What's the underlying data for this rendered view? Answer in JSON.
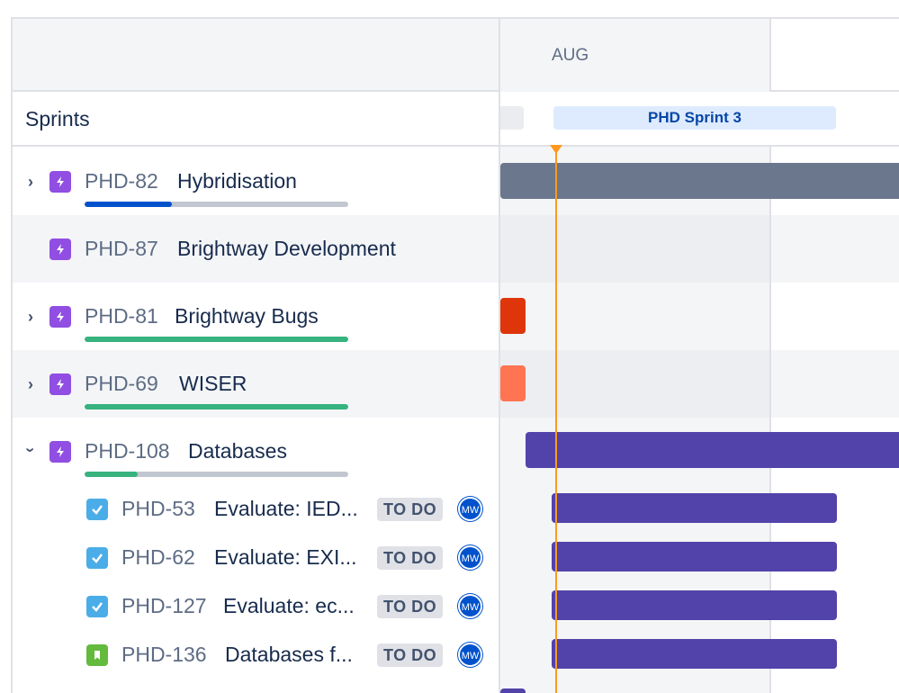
{
  "header": {
    "month": "AUG"
  },
  "sprints": {
    "label": "Sprints",
    "current_sprint": "PHD Sprint 3"
  },
  "epics": [
    {
      "key": "PHD-82",
      "title": "Hybridisation",
      "expandable": true,
      "expanded": false,
      "progress": 0.33,
      "progress_color": "#0052cc",
      "bar_color": "#6b778c"
    },
    {
      "key": "PHD-87",
      "title": "Brightway Development",
      "expandable": false,
      "expanded": false,
      "progress": null,
      "progress_color": "",
      "bar_color": ""
    },
    {
      "key": "PHD-81",
      "title": "Brightway Bugs",
      "expandable": true,
      "expanded": false,
      "progress": 1.0,
      "progress_color": "#36b37e",
      "bar_color": "#de350b"
    },
    {
      "key": "PHD-69",
      "title": "WISER",
      "expandable": true,
      "expanded": false,
      "progress": 1.0,
      "progress_color": "#36b37e",
      "bar_color": "#ff7452"
    },
    {
      "key": "PHD-108",
      "title": "Databases",
      "expandable": true,
      "expanded": true,
      "progress": 0.2,
      "progress_color": "#36b37e",
      "bar_color": "#5243aa"
    }
  ],
  "children": [
    {
      "key": "PHD-53",
      "title": "Evaluate: IED...",
      "type": "task",
      "status": "TO DO",
      "assignee": "MW"
    },
    {
      "key": "PHD-62",
      "title": "Evaluate: EXI...",
      "type": "task",
      "status": "TO DO",
      "assignee": "MW"
    },
    {
      "key": "PHD-127",
      "title": "Evaluate: ec...",
      "type": "task",
      "status": "TO DO",
      "assignee": "MW"
    },
    {
      "key": "PHD-136",
      "title": "Databases f...",
      "type": "story",
      "status": "TO DO",
      "assignee": "MW"
    }
  ],
  "colors": {
    "child_bar": "#5243aa",
    "today_marker": "#ff991f"
  }
}
